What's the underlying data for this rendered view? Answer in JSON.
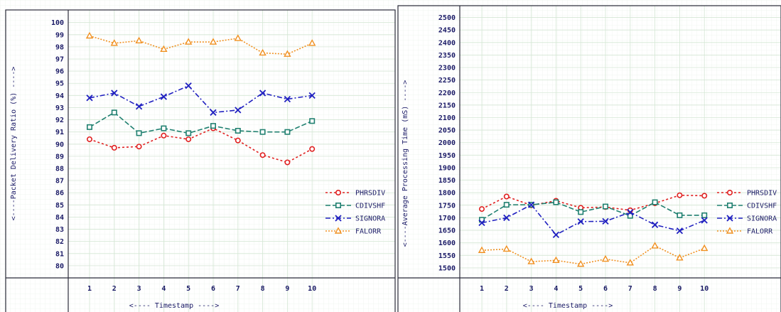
{
  "chart_data": [
    {
      "type": "line",
      "title": "",
      "xlabel": "<---- Timestamp ---->",
      "ylabel": "<----Packet Delivery Ratio (%) ---->",
      "x": [
        1,
        2,
        3,
        4,
        5,
        6,
        7,
        8,
        9,
        10
      ],
      "xticks": [
        "1",
        "2",
        "3",
        "4",
        "5",
        "6",
        "7",
        "8",
        "9",
        "10"
      ],
      "ylim": [
        79,
        100.8
      ],
      "yticks": [
        "80",
        "81",
        "82",
        "83",
        "84",
        "85",
        "86",
        "87",
        "88",
        "89",
        "90",
        "91",
        "92",
        "93",
        "94",
        "95",
        "96",
        "97",
        "98",
        "99",
        "100"
      ],
      "grid": true,
      "legend_position": "right",
      "series": [
        {
          "name": "PHRSDIV",
          "color": "#e02020",
          "marker": "circle",
          "dash": "3,3",
          "values": [
            90.4,
            89.7,
            89.8,
            90.7,
            90.4,
            91.3,
            90.3,
            89.1,
            88.5,
            89.6
          ]
        },
        {
          "name": "CDIVSHF",
          "color": "#208070",
          "marker": "square",
          "dash": "7,3",
          "values": [
            91.4,
            92.6,
            90.9,
            91.3,
            90.9,
            91.5,
            91.1,
            91.0,
            91.0,
            91.9
          ]
        },
        {
          "name": "SIGNORA",
          "color": "#2020c0",
          "marker": "x",
          "dash": "7,3,2,3",
          "values": [
            93.8,
            94.2,
            93.1,
            93.9,
            94.8,
            92.6,
            92.8,
            94.2,
            93.7,
            94.0
          ]
        },
        {
          "name": "FALORR",
          "color": "#f09020",
          "marker": "triangle",
          "dash": "2,2",
          "values": [
            98.9,
            98.3,
            98.5,
            97.8,
            98.4,
            98.4,
            98.7,
            97.5,
            97.4,
            98.3
          ]
        }
      ]
    },
    {
      "type": "line",
      "title": "",
      "xlabel": "<---- Timestamp ---->",
      "ylabel": "<----Average Processing Time (mS) ---->",
      "x": [
        1,
        2,
        3,
        4,
        5,
        6,
        7,
        8,
        9,
        10
      ],
      "xticks": [
        "1",
        "2",
        "3",
        "4",
        "5",
        "6",
        "7",
        "8",
        "9",
        "10"
      ],
      "ylim": [
        1460,
        2530
      ],
      "yticks": [
        "1500",
        "1550",
        "1600",
        "1650",
        "1700",
        "1750",
        "1800",
        "1850",
        "1900",
        "1950",
        "2000",
        "2050",
        "2100",
        "2150",
        "2200",
        "2250",
        "2300",
        "2350",
        "2400",
        "2450",
        "2500"
      ],
      "grid": true,
      "legend_position": "right",
      "series": [
        {
          "name": "PHRSDIV",
          "color": "#e02020",
          "marker": "circle",
          "dash": "3,3",
          "values": [
            1735,
            1785,
            1750,
            1768,
            1740,
            1743,
            1730,
            1758,
            1790,
            1788
          ]
        },
        {
          "name": "CDIVSHF",
          "color": "#208070",
          "marker": "square",
          "dash": "7,3",
          "values": [
            1692,
            1752,
            1752,
            1762,
            1723,
            1745,
            1708,
            1762,
            1710,
            1710
          ]
        },
        {
          "name": "SIGNORA",
          "color": "#2020c0",
          "marker": "x",
          "dash": "7,3,2,3",
          "values": [
            1680,
            1700,
            1752,
            1632,
            1685,
            1686,
            1722,
            1672,
            1648,
            1690
          ]
        },
        {
          "name": "FALORR",
          "color": "#f09020",
          "marker": "triangle",
          "dash": "2,2",
          "values": [
            1570,
            1575,
            1525,
            1530,
            1515,
            1535,
            1520,
            1588,
            1540,
            1578
          ]
        }
      ]
    }
  ]
}
